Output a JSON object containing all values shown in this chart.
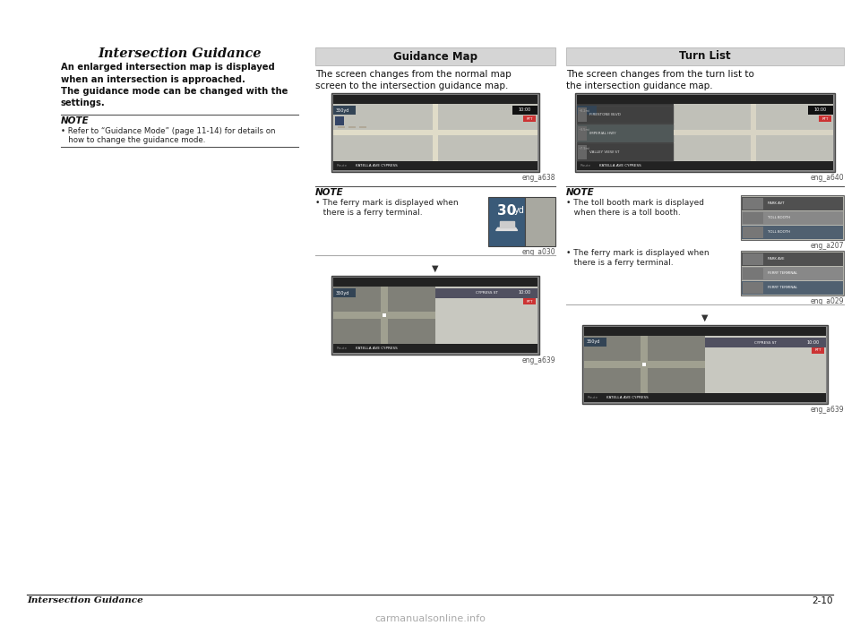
{
  "bg_color": "#ffffff",
  "title_left": "Intersection Guidance",
  "body_lines": [
    "An enlarged intersection map is displayed",
    "when an intersection is approached.",
    "The guidance mode can be changed with the",
    "settings."
  ],
  "note_left_label": "NOTE",
  "note_left_bullet": "• Refer to “Guidance Mode” (page 11-14) for details on",
  "note_left_bullet2": "   how to change the guidance mode.",
  "sec1_header": "Guidance Map",
  "sec1_desc1": "The screen changes from the normal map",
  "sec1_desc2": "screen to the intersection guidance map.",
  "sec1_img1_label": "eng_a638",
  "sec1_note_label": "NOTE",
  "sec1_note_bullet1": "• The ferry mark is displayed when",
  "sec1_note_bullet2": "   there is a ferry terminal.",
  "sec1_img2_label": "eng_a030",
  "sec1_img3_label": "eng_a639",
  "sec2_header": "Turn List",
  "sec2_desc1": "The screen changes from the turn list to",
  "sec2_desc2": "the intersection guidance map.",
  "sec2_img1_label": "eng_a640",
  "sec2_note_label": "NOTE",
  "sec2_note_bullet1a": "• The toll booth mark is displayed",
  "sec2_note_bullet1b": "   when there is a toll booth.",
  "sec2_img2_label": "eng_a207",
  "sec2_note_bullet2a": "• The ferry mark is displayed when",
  "sec2_note_bullet2b": "   there is a ferry terminal.",
  "sec2_img3_label": "eng_a029",
  "sec2_img4_label": "eng_a639",
  "footer_left": "Intersection Guidance",
  "footer_page": "2-10",
  "watermark": "carmanualsonline.info",
  "header_bg": "#d5d5d5",
  "header_border": "#aaaaaa",
  "map_bg": "#c8c8c8",
  "map_dark": "#404040",
  "map_road": "#e8e4d8",
  "map_gray": "#b0b0b0",
  "map_light": "#d8d8d0",
  "turnlist_left_bg": "#404040",
  "turnlist_right_bg": "#c8c8c8",
  "turnlist_row_dark": "#404850",
  "turnlist_row_light": "#909898",
  "ferry_img_bg": "#4a6a8a",
  "ferry_img_right": "#a8a8a0"
}
